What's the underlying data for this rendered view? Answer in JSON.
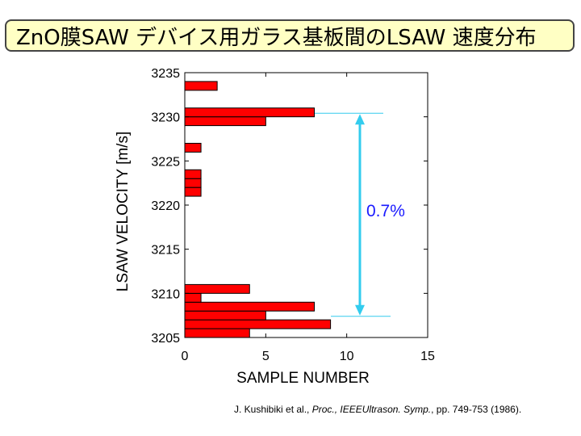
{
  "title": "ZnO膜SAW デバイス用ガラス基板間のLSAW 速度分布",
  "citation": {
    "authors": "J. Kushibiki et al., ",
    "journal": "Proc., IEEEUltrason. Symp.",
    "pages": ", pp. 749-753 (1986)."
  },
  "colors": {
    "bar_fill": "#ff0000",
    "bar_stroke": "#000000",
    "annotation": "#33ccee",
    "annotation_text": "#1a1aff",
    "title_bg": "#ffffc4"
  },
  "chart_data": {
    "type": "bar",
    "orientation": "horizontal",
    "xlabel": "SAMPLE NUMBER",
    "ylabel": "LSAW VELOCITY [m/s]",
    "xlim": [
      0,
      15
    ],
    "ylim": [
      3205,
      3235
    ],
    "xticks": [
      "0",
      "5",
      "10",
      "15"
    ],
    "yticks": [
      "3205",
      "3210",
      "3215",
      "3220",
      "3225",
      "3230",
      "3235"
    ],
    "categories": [
      3205.5,
      3206.5,
      3207.5,
      3208.5,
      3209.5,
      3210.5,
      3221.5,
      3222.5,
      3223.5,
      3226.5,
      3229.5,
      3230.5,
      3233.5
    ],
    "values": [
      4,
      9,
      5,
      8,
      1,
      4,
      1,
      1,
      1,
      1,
      5,
      8,
      2
    ],
    "annotation": {
      "label": "0.7%",
      "from": 3207.4,
      "to": 3230.4
    }
  }
}
